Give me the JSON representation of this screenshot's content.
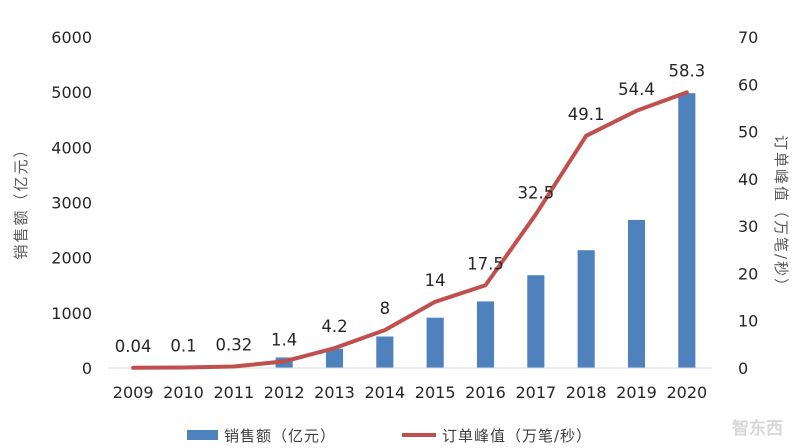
{
  "chart_data": {
    "type": "bar+line",
    "categories": [
      "2009",
      "2010",
      "2011",
      "2012",
      "2013",
      "2014",
      "2015",
      "2016",
      "2017",
      "2018",
      "2019",
      "2020"
    ],
    "series": [
      {
        "name": "销售额（亿元）",
        "type": "bar",
        "axis": "left",
        "color": "#4f81bd",
        "values": [
          0.5,
          9.36,
          52,
          191,
          350,
          571,
          912,
          1207,
          1682,
          2135,
          2684,
          4982
        ]
      },
      {
        "name": "订单峰值（万笔/秒）",
        "type": "line",
        "axis": "right",
        "color": "#c0504d",
        "values": [
          0.04,
          0.1,
          0.32,
          1.4,
          4.2,
          8,
          14,
          17.5,
          32.5,
          49.1,
          54.4,
          58.3
        ],
        "labels": [
          "0.04",
          "0.1",
          "0.32",
          "1.4",
          "4.2",
          "8",
          "14",
          "17.5",
          "32.5",
          "49.1",
          "54.4",
          "58.3"
        ]
      }
    ],
    "y_left": {
      "label": "销售额（亿元）",
      "ylim": [
        0,
        6000
      ],
      "ticks": [
        "0",
        "1000",
        "2000",
        "3000",
        "4000",
        "5000",
        "6000"
      ]
    },
    "y_right": {
      "label": "订单峰值（万笔/秒）",
      "ylim": [
        0,
        70
      ],
      "ticks": [
        "0",
        "10",
        "20",
        "30",
        "40",
        "50",
        "60",
        "70"
      ]
    },
    "legend_position": "bottom",
    "grid": false
  },
  "watermark": "智东西"
}
